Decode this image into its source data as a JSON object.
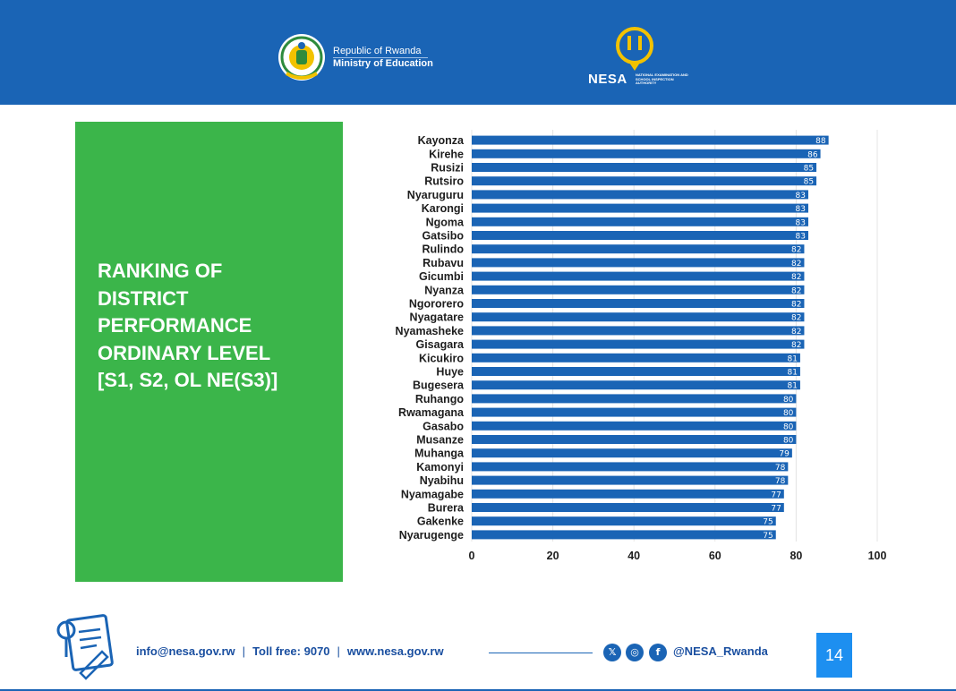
{
  "header": {
    "republic_label": "Republic of Rwanda",
    "ministry_label": "Ministry of Education",
    "nesa_label": "NESA",
    "nesa_subtitle": "NATIONAL EXAMINATION AND SCHOOL INSPECTION AUTHORITY",
    "background_color": "#1a64b5"
  },
  "panel": {
    "title_lines": [
      "RANKING OF",
      "DISTRICT",
      "PERFORMANCE",
      "ORDINARY LEVEL",
      "[S1, S2, OL NE(S3)]"
    ],
    "background_color": "#3bb54a"
  },
  "chart_data": {
    "type": "bar",
    "orientation": "horizontal",
    "categories": [
      "Kayonza",
      "Kirehe",
      "Rusizi",
      "Rutsiro",
      "Nyaruguru",
      "Karongi",
      "Ngoma",
      "Gatsibo",
      "Rulindo",
      "Rubavu",
      "Gicumbi",
      "Nyanza",
      "Ngororero",
      "Nyagatare",
      "Nyamasheke",
      "Gisagara",
      "Kicukiro",
      "Huye",
      "Bugesera",
      "Ruhango",
      "Rwamagana",
      "Gasabo",
      "Musanze",
      "Muhanga",
      "Kamonyi",
      "Nyabihu",
      "Nyamagabe",
      "Burera",
      "Gakenke",
      "Nyarugenge"
    ],
    "values": [
      88,
      86,
      85,
      85,
      83,
      83,
      83,
      83,
      82,
      82,
      82,
      82,
      82,
      82,
      82,
      82,
      81,
      81,
      81,
      80,
      80,
      80,
      80,
      79,
      78,
      78,
      77,
      77,
      75,
      75
    ],
    "data_labels": [
      "88",
      "86",
      "85",
      "85",
      "83",
      "83",
      "83",
      "83",
      "82",
      "82",
      "82",
      "82",
      "82",
      "82",
      "82",
      "82",
      "81",
      "81",
      "81",
      "80",
      "80",
      "80",
      "80",
      "79",
      "78",
      "78",
      "77",
      "77",
      "75",
      "75"
    ],
    "xlim": [
      0,
      100
    ],
    "x_ticks": [
      0,
      20,
      40,
      60,
      80,
      100
    ],
    "x_tick_labels": [
      "0",
      "20",
      "40",
      "60",
      "80",
      "100"
    ],
    "grid": true,
    "bar_color": "#1a64b5"
  },
  "footer": {
    "email": "info@nesa.gov.rw",
    "separator": "|",
    "toll_free": "Toll free: 9070",
    "website": "www.nesa.gov.rw",
    "social_handle": "@NESA_Rwanda",
    "page_number": "14",
    "social_icons": [
      "x-icon",
      "instagram-icon",
      "facebook-icon"
    ]
  }
}
